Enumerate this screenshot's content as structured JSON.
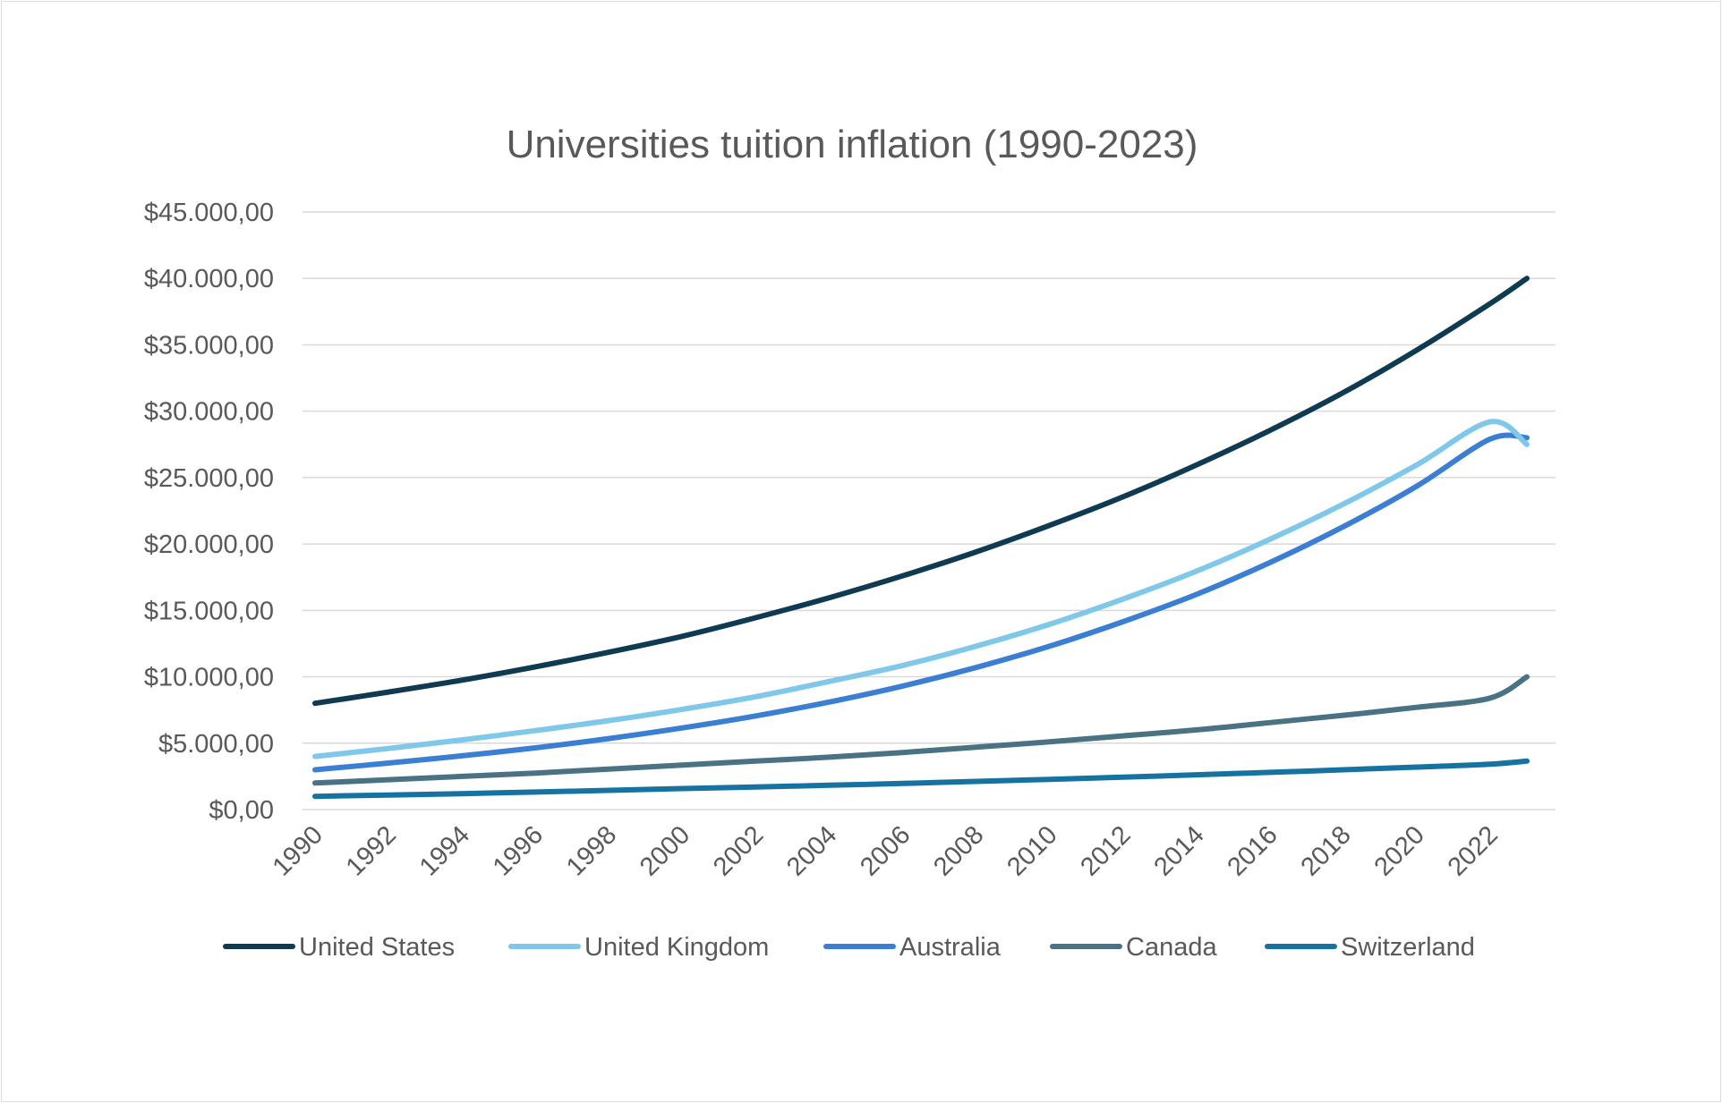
{
  "chart_data": {
    "type": "line",
    "title": "Universities tuition inflation (1990-2023)",
    "xlabel": "",
    "ylabel": "",
    "ylim": [
      0,
      45000
    ],
    "y_ticks": [
      0,
      5000,
      10000,
      15000,
      20000,
      25000,
      30000,
      35000,
      40000,
      45000
    ],
    "y_tick_labels": [
      "$0,00",
      "$5.000,00",
      "$10.000,00",
      "$15.000,00",
      "$20.000,00",
      "$25.000,00",
      "$30.000,00",
      "$35.000,00",
      "$40.000,00",
      "$45.000,00"
    ],
    "x_tick_labels": [
      "1990",
      "1992",
      "1994",
      "1996",
      "1998",
      "2000",
      "2002",
      "2004",
      "2006",
      "2008",
      "2010",
      "2012",
      "2014",
      "2016",
      "2018",
      "2020",
      "2022"
    ],
    "x": [
      1990,
      1992,
      1994,
      1996,
      1998,
      2000,
      2002,
      2004,
      2006,
      2008,
      2010,
      2012,
      2014,
      2016,
      2018,
      2020,
      2022,
      2023
    ],
    "grid": true,
    "legend_position": "bottom",
    "series": [
      {
        "name": "United States",
        "color": "#0e3a52",
        "values": [
          8000,
          8850,
          9750,
          10750,
          11850,
          13050,
          14450,
          15950,
          17600,
          19400,
          21400,
          23550,
          25950,
          28550,
          31400,
          34600,
          38100,
          40000
        ]
      },
      {
        "name": "United Kingdom",
        "color": "#80c8ea",
        "values": [
          4000,
          4600,
          5250,
          5950,
          6700,
          7550,
          8500,
          9650,
          10850,
          12300,
          13950,
          15850,
          17950,
          20350,
          23000,
          25950,
          29200,
          27500
        ]
      },
      {
        "name": "Australia",
        "color": "#3a7fd4",
        "values": [
          3000,
          3500,
          4050,
          4650,
          5350,
          6150,
          7050,
          8100,
          9300,
          10700,
          12300,
          14150,
          16200,
          18600,
          21300,
          24350,
          27900,
          28000
        ]
      },
      {
        "name": "Canada",
        "color": "#4a7285",
        "values": [
          2000,
          2250,
          2500,
          2750,
          3050,
          3350,
          3650,
          3950,
          4300,
          4700,
          5100,
          5550,
          6000,
          6550,
          7100,
          7700,
          8400,
          10000
        ]
      },
      {
        "name": "Switzerland",
        "color": "#1572a1",
        "values": [
          1000,
          1100,
          1200,
          1320,
          1450,
          1580,
          1700,
          1830,
          1970,
          2120,
          2280,
          2440,
          2620,
          2800,
          3000,
          3200,
          3420,
          3650
        ]
      }
    ]
  }
}
